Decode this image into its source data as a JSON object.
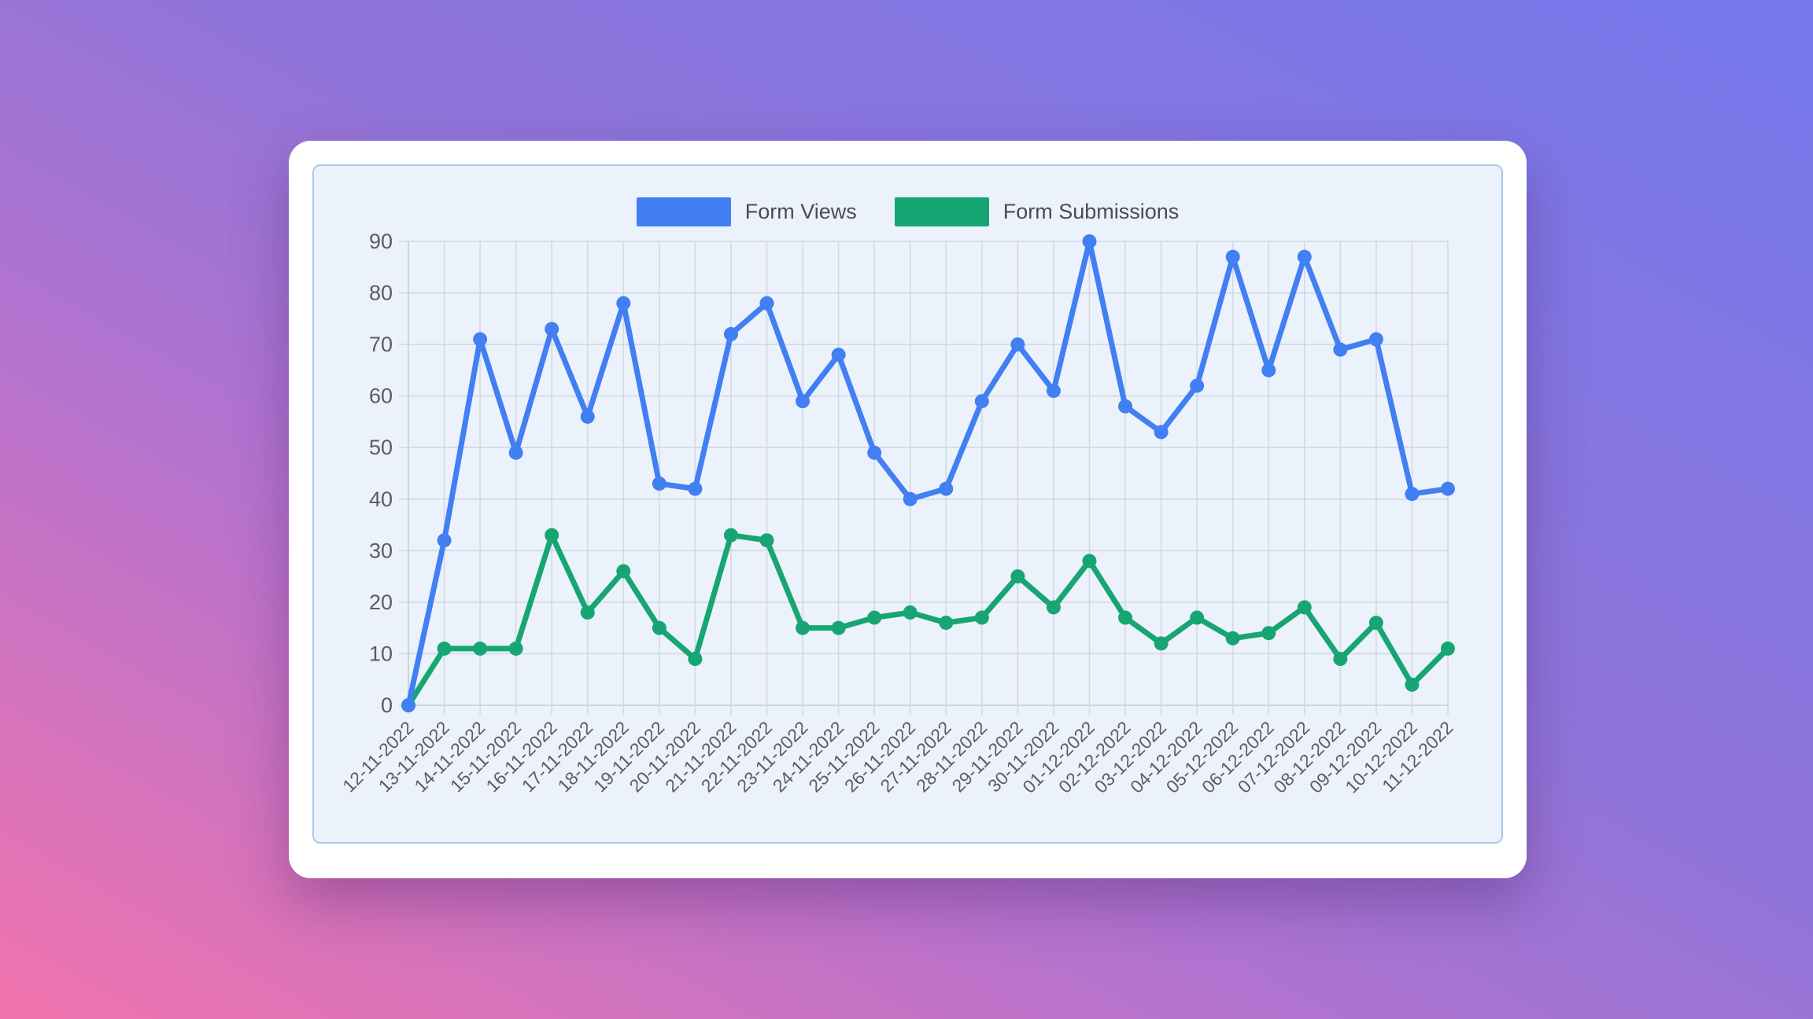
{
  "panel": {
    "background": "#ecf2fb",
    "border_color": "#a9c8e9",
    "grid_color": "#d3d9e3",
    "axis_color": "#c5ccd8",
    "tick_label_color": "#5a5c60"
  },
  "legend": {
    "items": [
      {
        "label": "Form Views",
        "color": "#417ff2"
      },
      {
        "label": "Form Submissions",
        "color": "#17a673"
      }
    ]
  },
  "chart_data": {
    "type": "line",
    "title": "",
    "xlabel": "",
    "ylabel": "",
    "ylim": [
      0,
      90
    ],
    "y_ticks": [
      0,
      10,
      20,
      30,
      40,
      50,
      60,
      70,
      80,
      90
    ],
    "grid": true,
    "legend_position": "top",
    "categories": [
      "12-11-2022",
      "13-11-2022",
      "14-11-2022",
      "15-11-2022",
      "16-11-2022",
      "17-11-2022",
      "18-11-2022",
      "19-11-2022",
      "20-11-2022",
      "21-11-2022",
      "22-11-2022",
      "23-11-2022",
      "24-11-2022",
      "25-11-2022",
      "26-11-2022",
      "27-11-2022",
      "28-11-2022",
      "29-11-2022",
      "30-11-2022",
      "01-12-2022",
      "02-12-2022",
      "03-12-2022",
      "04-12-2022",
      "05-12-2022",
      "06-12-2022",
      "07-12-2022",
      "08-12-2022",
      "09-12-2022",
      "10-12-2022",
      "11-12-2022"
    ],
    "series": [
      {
        "name": "Form Views",
        "color": "#417ff2",
        "values": [
          0,
          32,
          71,
          49,
          73,
          56,
          78,
          43,
          42,
          72,
          78,
          59,
          68,
          49,
          40,
          42,
          59,
          70,
          61,
          90,
          58,
          53,
          62,
          87,
          65,
          87,
          69,
          71,
          41,
          42
        ]
      },
      {
        "name": "Form Submissions",
        "color": "#17a673",
        "values": [
          0,
          11,
          11,
          11,
          33,
          18,
          26,
          15,
          9,
          33,
          32,
          15,
          15,
          17,
          18,
          16,
          17,
          25,
          19,
          28,
          17,
          12,
          17,
          13,
          14,
          19,
          9,
          16,
          4,
          11
        ]
      }
    ]
  }
}
